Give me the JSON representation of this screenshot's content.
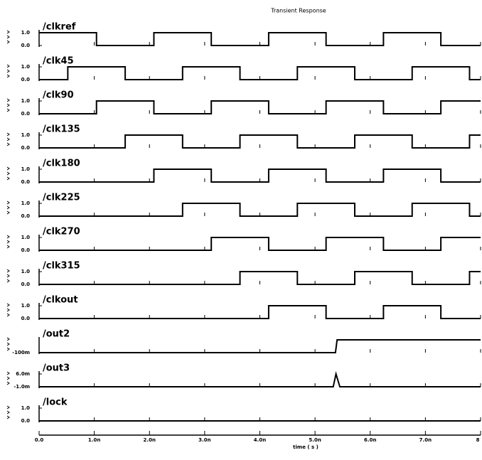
{
  "chart_data": {
    "type": "line",
    "title": "Transient Response",
    "xlabel": "time ( s )",
    "xlim": [
      0,
      8
    ],
    "xticks": [
      {
        "value": 0,
        "label": "0.0"
      },
      {
        "value": 1,
        "label": "1.0n"
      },
      {
        "value": 2,
        "label": "2.0n"
      },
      {
        "value": 3,
        "label": "3.0n"
      },
      {
        "value": 4,
        "label": "4.0n"
      },
      {
        "value": 5,
        "label": "5.0n"
      },
      {
        "value": 6,
        "label": "6.0n"
      },
      {
        "value": 7,
        "label": "7.0n"
      },
      8
    ],
    "series": [
      {
        "name": "/clkref",
        "color": "#000000",
        "ylim": [
          0,
          1
        ],
        "yticks": [
          {
            "value": 1,
            "label": "1.0"
          },
          {
            "value": 0,
            "label": "0.0"
          }
        ],
        "x": [
          0,
          1.04,
          1.04,
          2.08,
          2.08,
          3.12,
          3.12,
          4.16,
          4.16,
          5.2,
          5.2,
          6.24,
          6.24,
          7.28,
          7.28,
          8
        ],
        "values": [
          1,
          1,
          0,
          0,
          1,
          1,
          0,
          0,
          1,
          1,
          0,
          0,
          1,
          1,
          0,
          0
        ]
      },
      {
        "name": "/clk45",
        "color": "#000000",
        "ylim": [
          0,
          1
        ],
        "yticks": [
          {
            "value": 1,
            "label": "1.0"
          },
          {
            "value": 0,
            "label": "0.0"
          }
        ],
        "x": [
          0,
          0.52,
          0.52,
          1.56,
          1.56,
          2.6,
          2.6,
          3.64,
          3.64,
          4.68,
          4.68,
          5.72,
          5.72,
          6.76,
          6.76,
          7.8,
          7.8,
          8
        ],
        "values": [
          0,
          0,
          1,
          1,
          0,
          0,
          1,
          1,
          0,
          0,
          1,
          1,
          0,
          0,
          1,
          1,
          0,
          0
        ]
      },
      {
        "name": "/clk90",
        "color": "#000000",
        "ylim": [
          0,
          1
        ],
        "yticks": [
          {
            "value": 1,
            "label": "1.0"
          },
          {
            "value": 0,
            "label": "0.0"
          }
        ],
        "x": [
          0,
          1.04,
          1.04,
          2.08,
          2.08,
          3.12,
          3.12,
          4.16,
          4.16,
          5.2,
          5.2,
          6.24,
          6.24,
          7.28,
          7.28,
          8
        ],
        "values": [
          0,
          0,
          1,
          1,
          0,
          0,
          1,
          1,
          0,
          0,
          1,
          1,
          0,
          0,
          1,
          1
        ]
      },
      {
        "name": "/clk135",
        "color": "#000000",
        "ylim": [
          0,
          1
        ],
        "yticks": [
          {
            "value": 1,
            "label": "1.0"
          },
          {
            "value": 0,
            "label": "0.0"
          }
        ],
        "x": [
          0,
          1.56,
          1.56,
          2.6,
          2.6,
          3.64,
          3.64,
          4.68,
          4.68,
          5.72,
          5.72,
          6.76,
          6.76,
          7.8,
          7.8,
          8
        ],
        "values": [
          0,
          0,
          1,
          1,
          0,
          0,
          1,
          1,
          0,
          0,
          1,
          1,
          0,
          0,
          1,
          1
        ]
      },
      {
        "name": "/clk180",
        "color": "#000000",
        "ylim": [
          0,
          1
        ],
        "yticks": [
          {
            "value": 1,
            "label": "1.0"
          },
          {
            "value": 0,
            "label": "0.0"
          }
        ],
        "x": [
          0,
          2.08,
          2.08,
          3.12,
          3.12,
          4.16,
          4.16,
          5.2,
          5.2,
          6.24,
          6.24,
          7.28,
          7.28,
          8
        ],
        "values": [
          0,
          0,
          1,
          1,
          0,
          0,
          1,
          1,
          0,
          0,
          1,
          1,
          0,
          0
        ]
      },
      {
        "name": "/clk225",
        "color": "#000000",
        "ylim": [
          0,
          1
        ],
        "yticks": [
          {
            "value": 1,
            "label": "1.0"
          },
          {
            "value": 0,
            "label": "0.0"
          }
        ],
        "x": [
          0,
          2.6,
          2.6,
          3.64,
          3.64,
          4.68,
          4.68,
          5.72,
          5.72,
          6.76,
          6.76,
          7.8,
          7.8,
          8
        ],
        "values": [
          0,
          0,
          1,
          1,
          0,
          0,
          1,
          1,
          0,
          0,
          1,
          1,
          0,
          0
        ]
      },
      {
        "name": "/clk270",
        "color": "#000000",
        "ylim": [
          0,
          1
        ],
        "yticks": [
          {
            "value": 1,
            "label": "1.0"
          },
          {
            "value": 0,
            "label": "0.0"
          }
        ],
        "x": [
          0,
          3.12,
          3.12,
          4.16,
          4.16,
          5.2,
          5.2,
          6.24,
          6.24,
          7.28,
          7.28,
          8
        ],
        "values": [
          0,
          0,
          1,
          1,
          0,
          0,
          1,
          1,
          0,
          0,
          1,
          1
        ]
      },
      {
        "name": "/clk315",
        "color": "#000000",
        "ylim": [
          0,
          1
        ],
        "yticks": [
          {
            "value": 1,
            "label": "1.0"
          },
          {
            "value": 0,
            "label": "0.0"
          }
        ],
        "x": [
          0,
          3.64,
          3.64,
          4.68,
          4.68,
          5.72,
          5.72,
          6.76,
          6.76,
          7.8,
          7.8,
          8
        ],
        "values": [
          0,
          0,
          1,
          1,
          0,
          0,
          1,
          1,
          0,
          0,
          1,
          1
        ]
      },
      {
        "name": "/clkout",
        "color": "#000000",
        "ylim": [
          0,
          1
        ],
        "yticks": [
          {
            "value": 1,
            "label": "1.0"
          },
          {
            "value": 0,
            "label": "0.0"
          }
        ],
        "x": [
          0,
          4.16,
          4.16,
          5.2,
          5.2,
          6.24,
          6.24,
          7.28,
          7.28,
          8
        ],
        "values": [
          0,
          0,
          1,
          1,
          0,
          0,
          1,
          1,
          0,
          0
        ]
      },
      {
        "name": "/out2",
        "color": "#000000",
        "ylim": [
          -0.1,
          0.9
        ],
        "yticks": [
          {
            "value": -0.1,
            "label": "-100m"
          }
        ],
        "x": [
          0,
          5.37,
          5.4,
          8
        ],
        "values": [
          -0.1,
          -0.1,
          0.9,
          0.9
        ]
      },
      {
        "name": "/out3",
        "color": "#000000",
        "ylim": [
          -0.001,
          0.006
        ],
        "yticks": [
          {
            "value": 0.006,
            "label": "6.0m"
          },
          {
            "value": -0.001,
            "label": "-1.0m"
          }
        ],
        "x": [
          0,
          5.33,
          5.38,
          5.45,
          8
        ],
        "values": [
          -0.001,
          -0.001,
          0.006,
          -0.001,
          -0.001
        ]
      },
      {
        "name": "/lock",
        "color": "#000000",
        "ylim": [
          0,
          1
        ],
        "yticks": [
          {
            "value": 1,
            "label": "1.0"
          },
          {
            "value": 0,
            "label": "0.0"
          }
        ],
        "x": [
          0,
          8
        ],
        "values": [
          0,
          0
        ]
      }
    ]
  }
}
